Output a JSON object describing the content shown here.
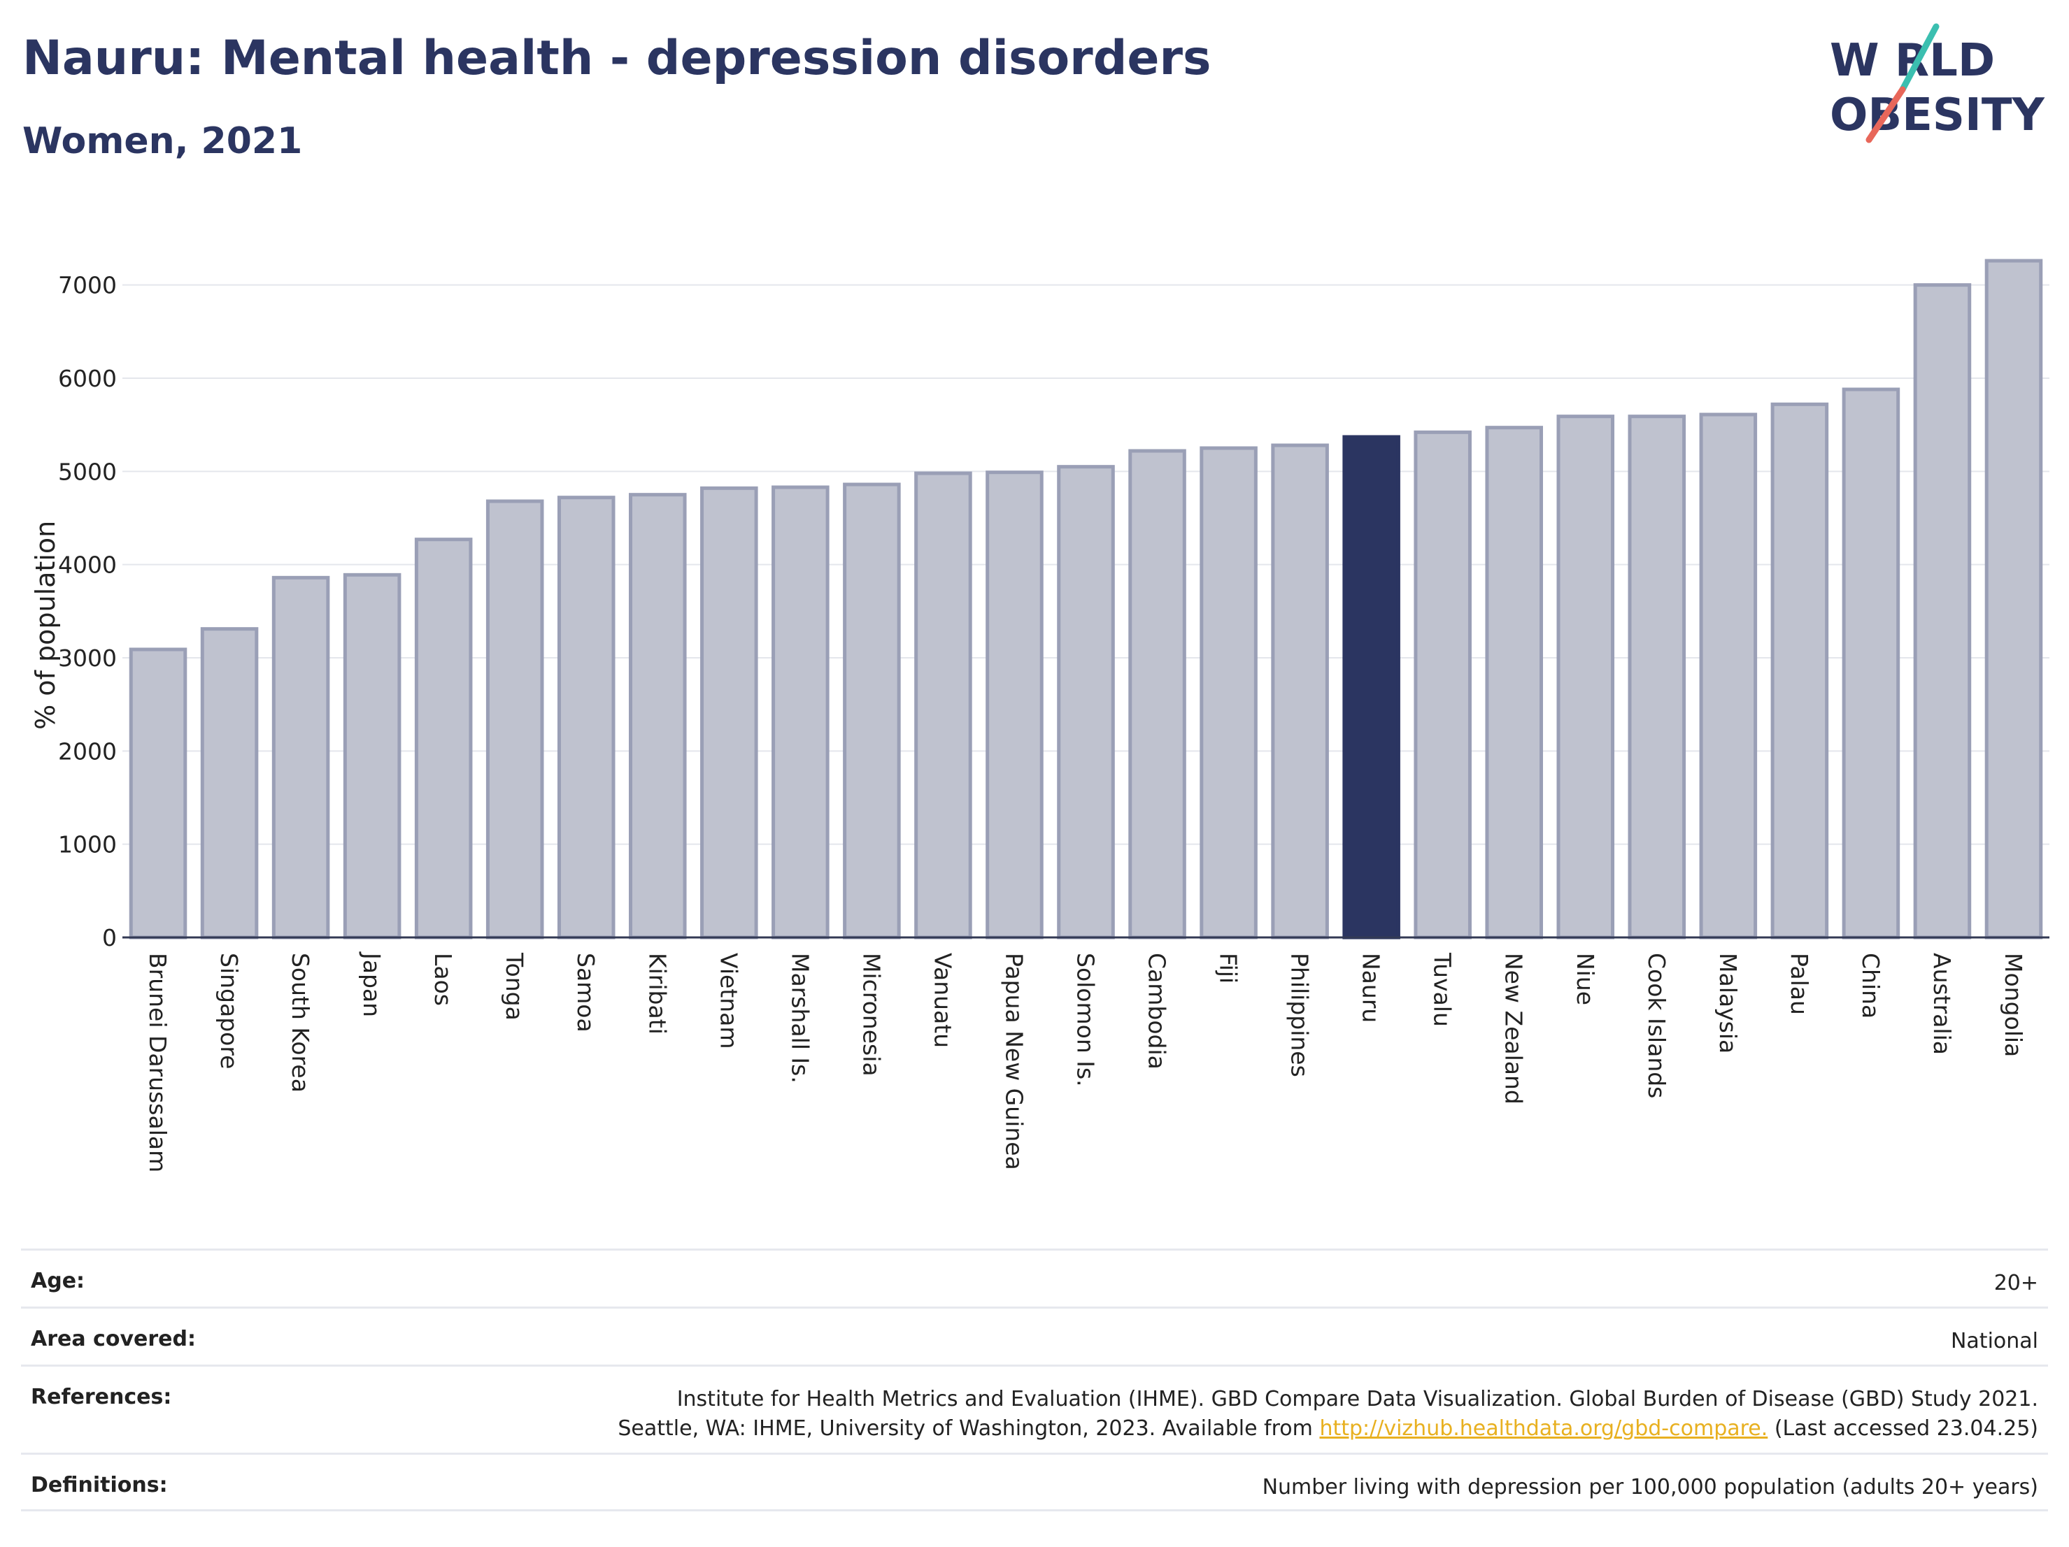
{
  "header": {
    "title": "Nauru: Mental health - depression disorders",
    "subtitle": "Women, 2021"
  },
  "logo": {
    "line1": "W RLD",
    "line2": "OBESITY",
    "colors": {
      "text": "#2b3561",
      "slash_top": "#3bbfb0",
      "slash_bottom": "#e8675a"
    }
  },
  "chart_data": {
    "type": "bar",
    "title": "Nauru: Mental health - depression disorders",
    "subtitle": "Women, 2021",
    "ylabel": "% of population",
    "xlabel": "",
    "ylim": [
      0,
      7500
    ],
    "yticks": [
      0,
      1000,
      2000,
      3000,
      4000,
      5000,
      6000,
      7000
    ],
    "grid": true,
    "highlight": "Nauru",
    "colors": {
      "bar": "#bfc2cf",
      "bar_edge": "#9a9fb6",
      "highlight": "#2b3561"
    },
    "categories": [
      "Brunei Darussalam",
      "Singapore",
      "South Korea",
      "Japan",
      "Laos",
      "Tonga",
      "Samoa",
      "Kiribati",
      "Vietnam",
      "Marshall Is.",
      "Micronesia",
      "Vanuatu",
      "Papua New Guinea",
      "Solomon Is.",
      "Cambodia",
      "Fiji",
      "Philippines",
      "Nauru",
      "Tuvalu",
      "New Zealand",
      "Niue",
      "Cook Islands",
      "Malaysia",
      "Palau",
      "China",
      "Australia",
      "Mongolia"
    ],
    "values": [
      3090,
      3310,
      3860,
      3890,
      4270,
      4680,
      4720,
      4750,
      4820,
      4830,
      4860,
      4980,
      4990,
      5050,
      5220,
      5250,
      5280,
      5370,
      5420,
      5470,
      5590,
      5590,
      5610,
      5720,
      5880,
      7000,
      7260
    ]
  },
  "info": {
    "age_label": "Age:",
    "age_value": "20+",
    "area_label": "Area covered:",
    "area_value": "National",
    "references_label": "References:",
    "references_line1": "Institute for Health Metrics and Evaluation (IHME). GBD Compare Data Visualization. Global Burden of Disease (GBD) Study 2021.",
    "references_line2_pre": "Seattle, WA: IHME, University of Washington, 2023. Available from",
    "references_link": "http://vizhub.healthdata.org/gbd-compare.",
    "references_line2_post": "(Last accessed 23.04.25)",
    "definitions_label": "Definitions:",
    "definitions_value": "Number living with depression per 100,000 population (adults 20+ years)"
  }
}
